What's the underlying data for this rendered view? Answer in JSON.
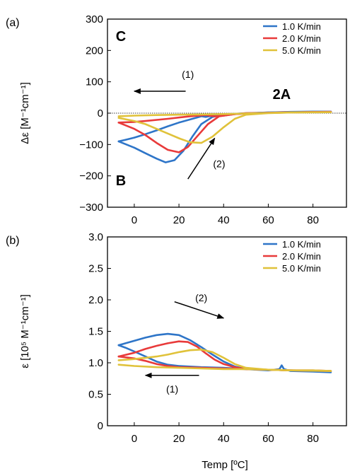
{
  "chart_data": [
    {
      "panel_label": "(a)",
      "type": "line",
      "ylabel": "Δε [M⁻¹cm⁻¹]",
      "xlim": [
        -12,
        95
      ],
      "ylim": [
        -300,
        300
      ],
      "xticks": [
        0,
        20,
        40,
        60,
        80
      ],
      "yticks": [
        -300,
        -200,
        -100,
        0,
        100,
        200,
        300
      ],
      "ytick_labels": [
        "−300",
        "−200",
        "−100",
        "0",
        "100",
        "200",
        "300"
      ],
      "zero_line": true,
      "legend": {
        "position": "top-right"
      },
      "annotations": [
        {
          "text": "C",
          "x": -6,
          "y": 230
        },
        {
          "text": "B",
          "x": -6,
          "y": -230
        },
        {
          "text": "2A",
          "x": 66,
          "y": 45
        },
        {
          "text": "(1)",
          "x": 24,
          "y": 113
        },
        {
          "text": "(2)",
          "x": 38,
          "y": -172
        }
      ],
      "arrows": [
        {
          "label": "(1)",
          "from": [
            23,
            70
          ],
          "to": [
            0,
            70
          ]
        },
        {
          "label": "(2)",
          "from": [
            24,
            -210
          ],
          "to": [
            36,
            -80
          ]
        }
      ],
      "series": [
        {
          "name": "1.0 K/min",
          "color": "#2e75c8",
          "heating": {
            "x": [
              -7,
              0,
              5,
              10,
              14,
              18,
              22,
              26,
              30,
              35,
              40,
              50,
              60,
              70,
              80,
              88
            ],
            "y": [
              -90,
              -110,
              -128,
              -145,
              -157,
              -150,
              -120,
              -75,
              -35,
              -12,
              -5,
              -1,
              2,
              4,
              5,
              5
            ]
          },
          "cooling": {
            "x": [
              88,
              80,
              70,
              60,
              50,
              45,
              40,
              35,
              32,
              30,
              28,
              25,
              20,
              15,
              10,
              5,
              0,
              -4,
              -7
            ],
            "y": [
              5,
              4,
              3,
              2,
              0,
              -2,
              -5,
              -8,
              -12,
              -10,
              -14,
              -20,
              -30,
              -42,
              -55,
              -67,
              -78,
              -85,
              -90
            ]
          }
        },
        {
          "name": "2.0 K/min",
          "color": "#e83a3a",
          "heating": {
            "x": [
              -7,
              0,
              5,
              10,
              15,
              20,
              24,
              28,
              33,
              38,
              45,
              55,
              65,
              75,
              85,
              88
            ],
            "y": [
              -30,
              -50,
              -70,
              -95,
              -117,
              -125,
              -108,
              -75,
              -35,
              -10,
              -3,
              0,
              2,
              3,
              4,
              4
            ]
          },
          "cooling": {
            "x": [
              88,
              75,
              60,
              50,
              45,
              40,
              36,
              32,
              25,
              15,
              5,
              0,
              -7
            ],
            "y": [
              4,
              3,
              1,
              0,
              -3,
              -8,
              -10,
              -6,
              -10,
              -18,
              -25,
              -28,
              -30
            ]
          }
        },
        {
          "name": "5.0 K/min",
          "color": "#e0c23a",
          "heating": {
            "x": [
              -7,
              0,
              5,
              10,
              15,
              20,
              25,
              30,
              35,
              40,
              45,
              50,
              60,
              70,
              80,
              88
            ],
            "y": [
              -15,
              -25,
              -35,
              -50,
              -65,
              -80,
              -93,
              -95,
              -75,
              -45,
              -18,
              -5,
              0,
              2,
              3,
              3
            ]
          },
          "cooling": {
            "x": [
              88,
              70,
              55,
              45,
              40,
              30,
              20,
              10,
              0,
              -7
            ],
            "y": [
              3,
              2,
              0,
              -2,
              -3,
              -4,
              -5,
              -6,
              -8,
              -10
            ]
          }
        }
      ]
    },
    {
      "panel_label": "(b)",
      "type": "line",
      "xlabel": "Temp [ºC]",
      "ylabel": "ε [10⁵ M⁻¹cm⁻¹]",
      "xlim": [
        -12,
        95
      ],
      "ylim": [
        0,
        3.0
      ],
      "xticks": [
        0,
        20,
        40,
        60,
        80
      ],
      "yticks": [
        0,
        0.5,
        1.0,
        1.5,
        2.0,
        2.5,
        3.0
      ],
      "ytick_labels": [
        "0",
        "0.5",
        "1.0",
        "1.5",
        "2.0",
        "2.5",
        "3.0"
      ],
      "legend": {
        "position": "top-right"
      },
      "annotations": [
        {
          "text": "(2)",
          "x": 30,
          "y": 1.98
        },
        {
          "text": "(1)",
          "x": 17,
          "y": 0.53
        }
      ],
      "arrows": [
        {
          "label": "(2)",
          "from": [
            18,
            1.97
          ],
          "to": [
            40,
            1.71
          ]
        },
        {
          "label": "(1)",
          "from": [
            29,
            0.8
          ],
          "to": [
            5,
            0.8
          ]
        }
      ],
      "series": [
        {
          "name": "1.0 K/min",
          "color": "#2e75c8",
          "heating": {
            "x": [
              -7,
              0,
              5,
              10,
              15,
              20,
              25,
              30,
              35,
              40,
              45,
              50,
              60,
              65,
              66,
              67,
              70,
              80,
              88
            ],
            "y": [
              1.28,
              1.35,
              1.4,
              1.44,
              1.46,
              1.44,
              1.36,
              1.25,
              1.13,
              1.02,
              0.94,
              0.9,
              0.88,
              0.9,
              0.96,
              0.9,
              0.87,
              0.86,
              0.85
            ]
          },
          "cooling": {
            "x": [
              88,
              70,
              50,
              40,
              30,
              20,
              15,
              10,
              5,
              0,
              -4,
              -7
            ],
            "y": [
              0.86,
              0.88,
              0.9,
              0.92,
              0.93,
              0.95,
              0.97,
              1.02,
              1.1,
              1.18,
              1.24,
              1.28
            ]
          }
        },
        {
          "name": "2.0 K/min",
          "color": "#e83a3a",
          "heating": {
            "x": [
              -7,
              0,
              5,
              10,
              15,
              20,
              24,
              28,
              32,
              36,
              40,
              45,
              50,
              60,
              70,
              80,
              88
            ],
            "y": [
              1.1,
              1.16,
              1.22,
              1.27,
              1.31,
              1.34,
              1.33,
              1.26,
              1.15,
              1.05,
              0.98,
              0.93,
              0.9,
              0.89,
              0.88,
              0.88,
              0.87
            ]
          },
          "cooling": {
            "x": [
              88,
              70,
              50,
              40,
              30,
              20,
              15,
              10,
              5,
              0,
              -7
            ],
            "y": [
              0.87,
              0.88,
              0.9,
              0.91,
              0.92,
              0.93,
              0.95,
              0.98,
              1.03,
              1.07,
              1.1
            ]
          }
        },
        {
          "name": "5.0 K/min",
          "color": "#e0c23a",
          "heating": {
            "x": [
              -7,
              0,
              5,
              10,
              15,
              20,
              25,
              30,
              35,
              40,
              45,
              50,
              60,
              70,
              80,
              88
            ],
            "y": [
              1.04,
              1.06,
              1.08,
              1.1,
              1.13,
              1.17,
              1.2,
              1.21,
              1.17,
              1.08,
              0.98,
              0.92,
              0.89,
              0.88,
              0.88,
              0.87
            ]
          },
          "cooling": {
            "x": [
              88,
              70,
              50,
              40,
              30,
              20,
              10,
              0,
              -7
            ],
            "y": [
              0.87,
              0.88,
              0.9,
              0.9,
              0.91,
              0.92,
              0.93,
              0.95,
              0.97
            ]
          }
        }
      ]
    }
  ]
}
